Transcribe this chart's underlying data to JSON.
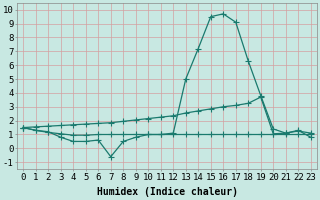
{
  "line1_x": [
    0,
    1,
    2,
    3,
    4,
    5,
    6,
    7,
    8,
    9,
    10,
    11,
    12,
    13,
    14,
    15,
    16,
    17,
    18,
    19,
    20,
    21,
    22,
    23
  ],
  "line1_y": [
    1.5,
    1.3,
    1.2,
    0.8,
    0.5,
    0.5,
    0.6,
    -0.6,
    0.5,
    0.8,
    1.0,
    1.0,
    1.1,
    5.0,
    7.2,
    9.5,
    9.7,
    9.1,
    6.3,
    3.8,
    1.4,
    1.1,
    1.3,
    0.8
  ],
  "line2_x": [
    0,
    1,
    2,
    3,
    4,
    5,
    6,
    7,
    8,
    9,
    10,
    11,
    12,
    13,
    14,
    15,
    16,
    17,
    18,
    19,
    20,
    21,
    22,
    23
  ],
  "line2_y": [
    1.5,
    1.55,
    1.6,
    1.65,
    1.7,
    1.75,
    1.8,
    1.85,
    1.95,
    2.05,
    2.15,
    2.25,
    2.35,
    2.55,
    2.7,
    2.85,
    3.0,
    3.1,
    3.25,
    3.7,
    1.05,
    1.1,
    1.25,
    1.1
  ],
  "line3_x": [
    0,
    1,
    2,
    3,
    4,
    5,
    6,
    7,
    8,
    9,
    10,
    11,
    12,
    13,
    14,
    15,
    16,
    17,
    18,
    19,
    20,
    21,
    22,
    23
  ],
  "line3_y": [
    1.5,
    1.3,
    1.15,
    1.05,
    0.95,
    0.95,
    1.0,
    1.0,
    1.0,
    1.0,
    1.0,
    1.0,
    1.0,
    1.0,
    1.0,
    1.0,
    1.0,
    1.0,
    1.0,
    1.0,
    1.0,
    1.0,
    1.0,
    1.0
  ],
  "line_color": "#1a7a6e",
  "bg_color": "#c8e8e2",
  "grid_color": "#b0d8d0",
  "xlabel": "Humidex (Indice chaleur)",
  "ylim": [
    -1.5,
    10.5
  ],
  "xlim": [
    -0.5,
    23.5
  ],
  "yticks": [
    -1,
    0,
    1,
    2,
    3,
    4,
    5,
    6,
    7,
    8,
    9,
    10
  ],
  "xticks": [
    0,
    1,
    2,
    3,
    4,
    5,
    6,
    7,
    8,
    9,
    10,
    11,
    12,
    13,
    14,
    15,
    16,
    17,
    18,
    19,
    20,
    21,
    22,
    23
  ],
  "marker": "+",
  "markersize": 4,
  "linewidth": 0.9,
  "xlabel_fontsize": 7,
  "tick_fontsize": 6.5
}
